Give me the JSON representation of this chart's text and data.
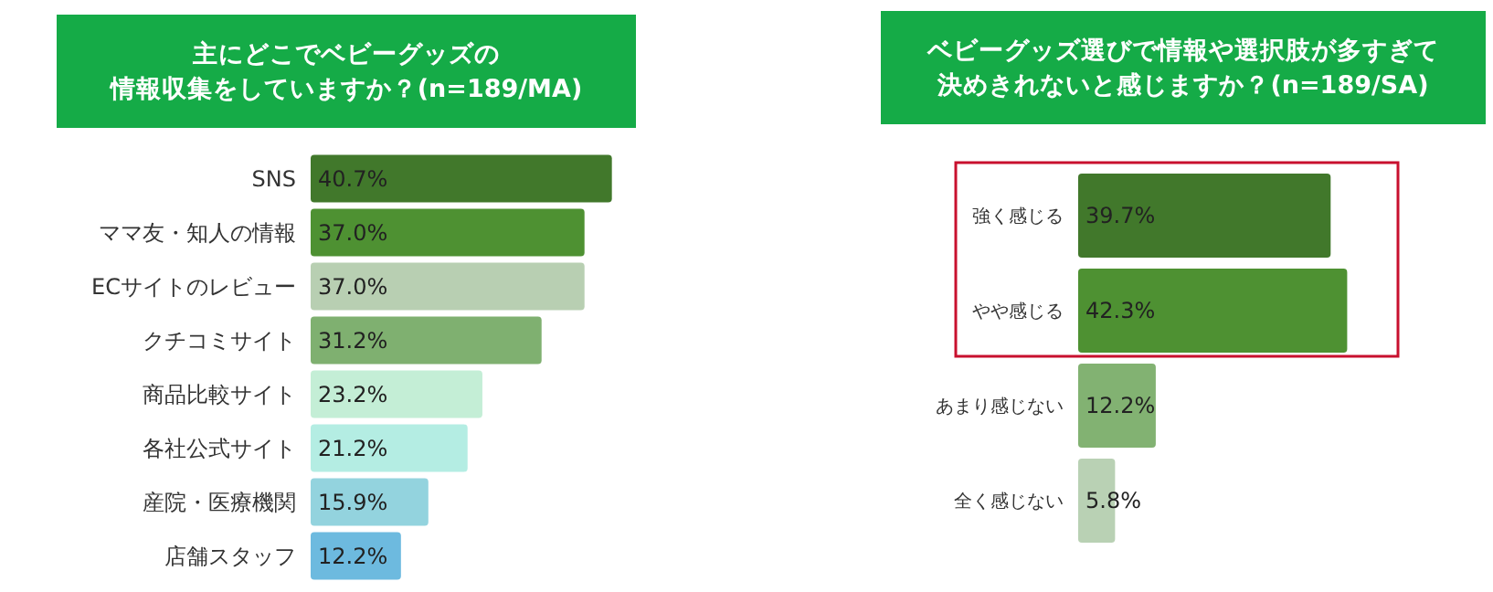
{
  "chart_data": [
    {
      "type": "bar",
      "orientation": "horizontal",
      "title": "主にどこでベビーグッズの情報収集をしていますか？(n=189/MA)",
      "categories": [
        "SNS",
        "ママ友・知人の情報",
        "ECサイトのレビュー",
        "クチコミサイト",
        "商品比較サイト",
        "各社公式サイト",
        "産院・医療機関",
        "店舗スタッフ"
      ],
      "values": [
        40.7,
        37.0,
        37.0,
        31.2,
        23.2,
        21.2,
        15.9,
        12.2
      ],
      "value_labels": [
        "40.7%",
        "37.0%",
        "37.0%",
        "31.2%",
        "23.2%",
        "21.2%",
        "15.9%",
        "12.2%"
      ],
      "colors": [
        "#41782b",
        "#4e9132",
        "#b8cfb2",
        "#7fb070",
        "#c4eed6",
        "#b4ede3",
        "#93d3de",
        "#6dbadf"
      ]
    },
    {
      "type": "bar",
      "orientation": "horizontal",
      "title": "ベビーグッズ選びで情報や選択肢が多すぎて決めきれないと感じますか？(n=189/SA)",
      "categories": [
        "強く感じる",
        "やや感じる",
        "あまり感じない",
        "全く感じない"
      ],
      "values": [
        39.7,
        42.3,
        12.2,
        5.8
      ],
      "value_labels": [
        "39.7%",
        "42.3%",
        "12.2%",
        "5.8%"
      ],
      "colors": [
        "#41782b",
        "#4e9132",
        "#82b272",
        "#b9d1b4"
      ]
    }
  ]
}
